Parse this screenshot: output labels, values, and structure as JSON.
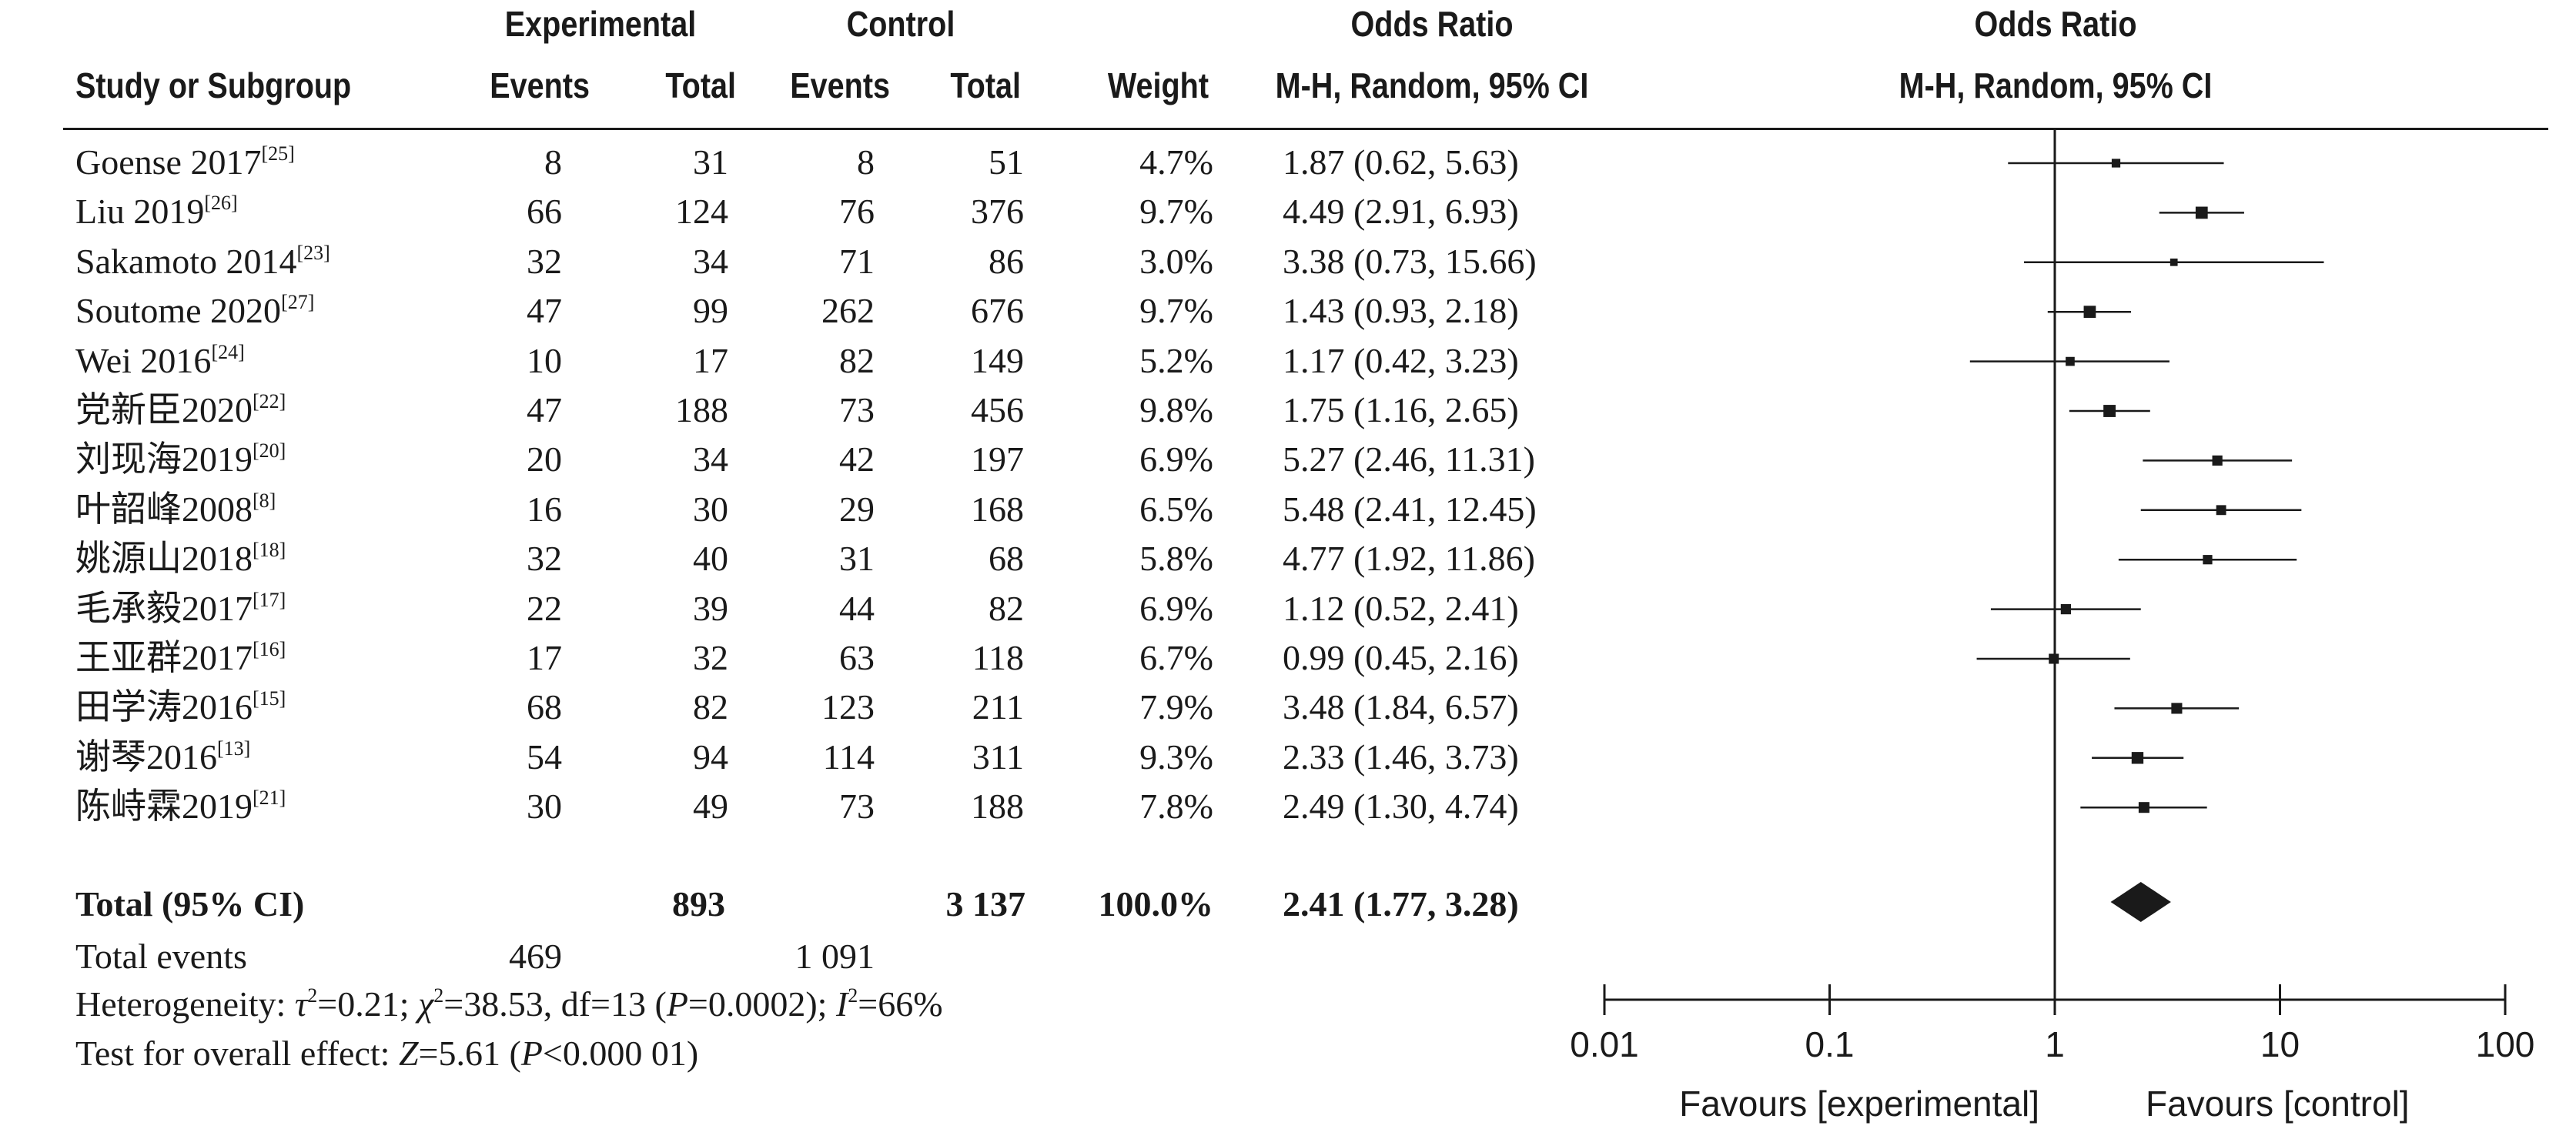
{
  "header": {
    "group1": "Experimental",
    "group2": "Control",
    "or_group": "Odds Ratio",
    "or_group_plot": "Odds Ratio",
    "col_study": "Study or Subgroup",
    "col_events1": "Events",
    "col_total1": "Total",
    "col_events2": "Events",
    "col_total2": "Total",
    "col_weight": "Weight",
    "col_method": "M-H, Random, 95% CI",
    "col_method_plot": "M-H, Random, 95% CI"
  },
  "rows": [
    {
      "study": "Goense 2017",
      "ref": "[25]",
      "e_events": "8",
      "e_total": "31",
      "c_events": "8",
      "c_total": "51",
      "weight": "4.7%",
      "ci": "1.87 (0.62, 5.63)"
    },
    {
      "study": "Liu 2019",
      "ref": "[26]",
      "e_events": "66",
      "e_total": "124",
      "c_events": "76",
      "c_total": "376",
      "weight": "9.7%",
      "ci": "4.49 (2.91, 6.93)"
    },
    {
      "study": "Sakamoto 2014",
      "ref": "[23]",
      "e_events": "32",
      "e_total": "34",
      "c_events": "71",
      "c_total": "86",
      "weight": "3.0%",
      "ci": "3.38 (0.73, 15.66)"
    },
    {
      "study": "Soutome 2020",
      "ref": "[27]",
      "e_events": "47",
      "e_total": "99",
      "c_events": "262",
      "c_total": "676",
      "weight": "9.7%",
      "ci": "1.43 (0.93, 2.18)"
    },
    {
      "study": "Wei 2016",
      "ref": "[24]",
      "e_events": "10",
      "e_total": "17",
      "c_events": "82",
      "c_total": "149",
      "weight": "5.2%",
      "ci": "1.17 (0.42, 3.23)"
    },
    {
      "study": "党新臣2020",
      "ref": "[22]",
      "e_events": "47",
      "e_total": "188",
      "c_events": "73",
      "c_total": "456",
      "weight": "9.8%",
      "ci": "1.75 (1.16, 2.65)"
    },
    {
      "study": "刘现海2019",
      "ref": "[20]",
      "e_events": "20",
      "e_total": "34",
      "c_events": "42",
      "c_total": "197",
      "weight": "6.9%",
      "ci": "5.27 (2.46, 11.31)"
    },
    {
      "study": "叶韶峰2008",
      "ref": "[8]",
      "e_events": "16",
      "e_total": "30",
      "c_events": "29",
      "c_total": "168",
      "weight": "6.5%",
      "ci": "5.48 (2.41, 12.45)"
    },
    {
      "study": "姚源山2018",
      "ref": "[18]",
      "e_events": "32",
      "e_total": "40",
      "c_events": "31",
      "c_total": "68",
      "weight": "5.8%",
      "ci": "4.77 (1.92, 11.86)"
    },
    {
      "study": "毛承毅2017",
      "ref": "[17]",
      "e_events": "22",
      "e_total": "39",
      "c_events": "44",
      "c_total": "82",
      "weight": "6.9%",
      "ci": "1.12 (0.52, 2.41)"
    },
    {
      "study": "王亚群2017",
      "ref": "[16]",
      "e_events": "17",
      "e_total": "32",
      "c_events": "63",
      "c_total": "118",
      "weight": "6.7%",
      "ci": "0.99 (0.45, 2.16)"
    },
    {
      "study": "田学涛2016",
      "ref": "[15]",
      "e_events": "68",
      "e_total": "82",
      "c_events": "123",
      "c_total": "211",
      "weight": "7.9%",
      "ci": "3.48 (1.84, 6.57)"
    },
    {
      "study": "谢琴2016",
      "ref": "[13]",
      "e_events": "54",
      "e_total": "94",
      "c_events": "114",
      "c_total": "311",
      "weight": "9.3%",
      "ci": "2.33 (1.46, 3.73)"
    },
    {
      "study": "陈峙霖2019",
      "ref": "[21]",
      "e_events": "30",
      "e_total": "49",
      "c_events": "73",
      "c_total": "188",
      "weight": "7.8%",
      "ci": "2.49 (1.30, 4.74)"
    }
  ],
  "total": {
    "label": "Total (95% CI)",
    "e_total": "893",
    "c_total": "3 137",
    "weight": "100.0%",
    "ci": "2.41 (1.77, 3.28)"
  },
  "total_events": {
    "label": "Total events",
    "e_events": "469",
    "c_events": "1 091"
  },
  "heterogeneity": {
    "prefix": "Heterogeneity: ",
    "tau_sym": "τ",
    "tau_val": "=0.21; ",
    "chi_sym": "χ",
    "chi_val": "=38.53, df=13 (",
    "p_sym": "P",
    "p_val": "=0.0002); ",
    "i_sym": "I",
    "i_val": "=66%",
    "sq": "2"
  },
  "overall_effect": {
    "prefix": "Test for overall effect: ",
    "z_sym": "Z",
    "z_val": "=5.61 (",
    "p_sym": "P",
    "p_val": "<0.000 01)"
  },
  "chart_data": {
    "type": "forest",
    "scale": "log",
    "xlim": [
      0.01,
      100
    ],
    "ticks": [
      0.01,
      0.1,
      1,
      10,
      100
    ],
    "tick_labels": [
      "0.01",
      "0.1",
      "1",
      "10",
      "100"
    ],
    "favours_left": "Favours [experimental]",
    "favours_right": "Favours [control]",
    "points": [
      {
        "or": 1.87,
        "lo": 0.62,
        "hi": 5.63,
        "weight": 4.7
      },
      {
        "or": 4.49,
        "lo": 2.91,
        "hi": 6.93,
        "weight": 9.7
      },
      {
        "or": 3.38,
        "lo": 0.73,
        "hi": 15.66,
        "weight": 3.0
      },
      {
        "or": 1.43,
        "lo": 0.93,
        "hi": 2.18,
        "weight": 9.7
      },
      {
        "or": 1.17,
        "lo": 0.42,
        "hi": 3.23,
        "weight": 5.2
      },
      {
        "or": 1.75,
        "lo": 1.16,
        "hi": 2.65,
        "weight": 9.8
      },
      {
        "or": 5.27,
        "lo": 2.46,
        "hi": 11.31,
        "weight": 6.9
      },
      {
        "or": 5.48,
        "lo": 2.41,
        "hi": 12.45,
        "weight": 6.5
      },
      {
        "or": 4.77,
        "lo": 1.92,
        "hi": 11.86,
        "weight": 5.8
      },
      {
        "or": 1.12,
        "lo": 0.52,
        "hi": 2.41,
        "weight": 6.9
      },
      {
        "or": 0.99,
        "lo": 0.45,
        "hi": 2.16,
        "weight": 6.7
      },
      {
        "or": 3.48,
        "lo": 1.84,
        "hi": 6.57,
        "weight": 7.9
      },
      {
        "or": 2.33,
        "lo": 1.46,
        "hi": 3.73,
        "weight": 9.3
      },
      {
        "or": 2.49,
        "lo": 1.3,
        "hi": 4.74,
        "weight": 7.8
      }
    ],
    "pooled": {
      "or": 2.41,
      "lo": 1.77,
      "hi": 3.28
    }
  }
}
